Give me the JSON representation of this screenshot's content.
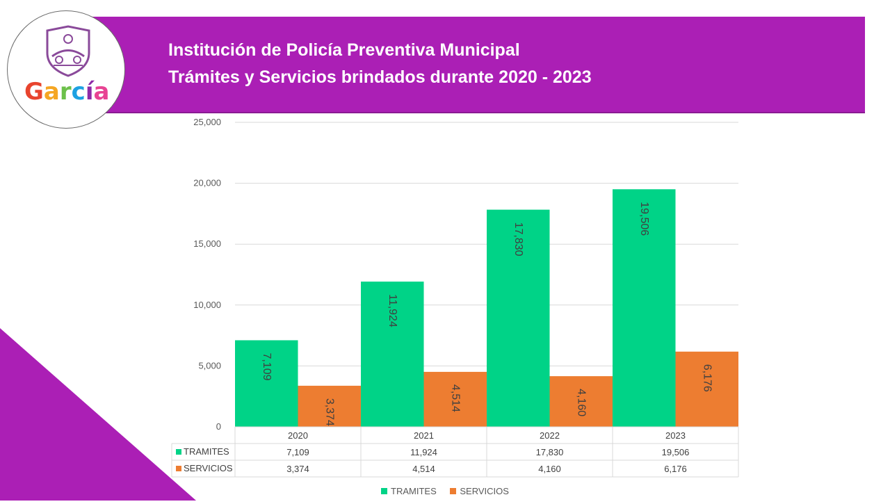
{
  "header": {
    "title_line1": "Institución de Policía Preventiva Municipal",
    "title_line2": "Trámites y Servicios brindados durante 2020 - 2023"
  },
  "logo": {
    "text": "García",
    "letter_colors": [
      "#e8442e",
      "#f5a623",
      "#6cc04a",
      "#1da1e2",
      "#8e2aa7",
      "#e84393"
    ]
  },
  "colors": {
    "banner": "#ab1fb5",
    "tramites": "#00d387",
    "servicios": "#ed7d31",
    "grid": "#d9d9d9"
  },
  "chart_data": {
    "type": "bar",
    "title": "",
    "categories": [
      "2020",
      "2021",
      "2022",
      "2023"
    ],
    "series": [
      {
        "name": "TRAMITES",
        "values": [
          7109,
          11924,
          17830,
          19506
        ],
        "labels": [
          "7,109",
          "11,924",
          "17,830",
          "19,506"
        ]
      },
      {
        "name": "SERVICIOS",
        "values": [
          3374,
          4514,
          4160,
          6176
        ],
        "labels": [
          "3,374",
          "4,514",
          "4,160",
          "6,176"
        ]
      }
    ],
    "ylim": [
      0,
      25000
    ],
    "yticks": [
      0,
      5000,
      10000,
      15000,
      20000,
      25000
    ],
    "ytick_labels": [
      "0",
      "5,000",
      "10,000",
      "15,000",
      "20,000",
      "25,000"
    ],
    "xlabel": "",
    "ylabel": "",
    "grid": true,
    "data_table": true,
    "legend_position": "bottom"
  }
}
